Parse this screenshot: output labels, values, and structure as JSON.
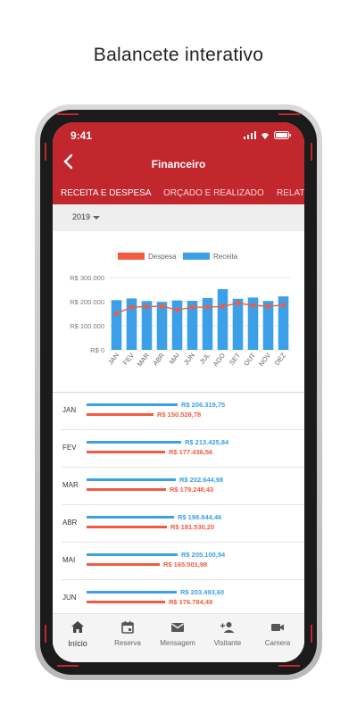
{
  "caption": "Balancete interativo",
  "status": {
    "time": "9:41"
  },
  "appbar": {
    "title": "Financeiro"
  },
  "tabs": [
    {
      "label": "RECEITA E DESPESA"
    },
    {
      "label": "ORÇADO E REALIZADO"
    },
    {
      "label": "RELATÓ"
    }
  ],
  "filter": {
    "year": "2019"
  },
  "colors": {
    "brand": "#c1272d",
    "receita": "#3ba0e8",
    "despesa": "#f35a40"
  },
  "chart_data": {
    "type": "bar",
    "categories": [
      "JAN",
      "FEV",
      "MAR",
      "ABR",
      "MAI",
      "JUN",
      "JUL",
      "AGO",
      "SET",
      "OUT",
      "NOV",
      "DEZ"
    ],
    "series": [
      {
        "name": "Receita",
        "type": "bar",
        "values": [
          206319.75,
          213425.84,
          202644.98,
          198844.46,
          205100.94,
          203493.6,
          215000,
          252000,
          212000,
          217000,
          203000,
          222000
        ]
      },
      {
        "name": "Despesa",
        "type": "line",
        "values": [
          150526.78,
          177436.56,
          179248.43,
          181530.2,
          165501.98,
          176784.49,
          178000,
          180000,
          194000,
          185000,
          181000,
          186000
        ]
      }
    ],
    "yticks": [
      "R$ 300.000",
      "R$ 200.000",
      "R$ 100.000",
      "R$ 0"
    ],
    "ylim": [
      0,
      300000
    ],
    "legend": "top"
  },
  "list": [
    {
      "month": "JAN",
      "receita": "R$ 206.319,75",
      "despesa": "R$ 150.526,78",
      "r": 206319.75,
      "d": 150526.78
    },
    {
      "month": "FEV",
      "receita": "R$ 213.425,84",
      "despesa": "R$ 177.436,56",
      "r": 213425.84,
      "d": 177436.56
    },
    {
      "month": "MAR",
      "receita": "R$ 202.644,98",
      "despesa": "R$ 179.248,43",
      "r": 202644.98,
      "d": 179248.43
    },
    {
      "month": "ABR",
      "receita": "R$ 198.844,46",
      "despesa": "R$ 181.530,20",
      "r": 198844.46,
      "d": 181530.2
    },
    {
      "month": "MAI",
      "receita": "R$ 205.100,94",
      "despesa": "R$ 165.501,98",
      "r": 205100.94,
      "d": 165501.98
    },
    {
      "month": "JUN",
      "receita": "R$ 203.493,60",
      "despesa": "R$ 176.784,49",
      "r": 203493.6,
      "d": 176784.49
    }
  ],
  "nav": [
    {
      "label": "Início",
      "icon": "home-icon"
    },
    {
      "label": "Reserva",
      "icon": "calendar-icon"
    },
    {
      "label": "Mensagem",
      "icon": "mail-icon"
    },
    {
      "label": "Visitante",
      "icon": "add-person-icon"
    },
    {
      "label": "Camera",
      "icon": "video-camera-icon"
    }
  ]
}
